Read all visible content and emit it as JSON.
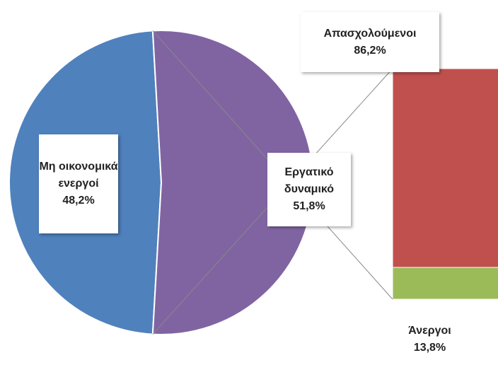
{
  "chart_data": {
    "type": "pie-of-bar",
    "pie": {
      "categories": [
        "Μη οικονομικά ενεργοί",
        "Εργατικό δυναμικό"
      ],
      "values": [
        48.2,
        51.8
      ],
      "value_labels": [
        "48,2%",
        "51,8%"
      ],
      "colors": [
        "#4f81bd",
        "#8064a2"
      ]
    },
    "bar": {
      "categories": [
        "Απασχολούμενοι",
        "Άνεργοι"
      ],
      "values": [
        86.2,
        13.8
      ],
      "value_labels": [
        "86,2%",
        "13,8%"
      ],
      "colors": [
        "#c0504d",
        "#9bbb59"
      ]
    }
  }
}
